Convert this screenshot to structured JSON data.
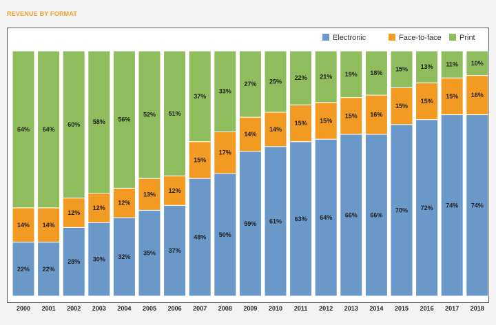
{
  "chart_data": {
    "type": "bar",
    "stacked": true,
    "title": "REVENUE BY FORMAT",
    "xlabel": "",
    "ylabel": "",
    "ylim": [
      0,
      100
    ],
    "legend_position": "top-right",
    "categories": [
      "2000",
      "2001",
      "2002",
      "2003",
      "2004",
      "2005",
      "2006",
      "2007",
      "2008",
      "2009",
      "2010",
      "2011",
      "2012",
      "2013",
      "2014",
      "2015",
      "2016",
      "2017",
      "2018"
    ],
    "series": [
      {
        "name": "Electronic",
        "color": "#6a98c9",
        "values": [
          22,
          22,
          28,
          30,
          32,
          35,
          37,
          48,
          50,
          59,
          61,
          63,
          64,
          66,
          66,
          70,
          72,
          74,
          74
        ]
      },
      {
        "name": "Face-to-face",
        "color": "#f39a22",
        "values": [
          14,
          14,
          12,
          12,
          12,
          13,
          12,
          15,
          17,
          14,
          14,
          15,
          15,
          15,
          16,
          15,
          15,
          15,
          16
        ]
      },
      {
        "name": "Print",
        "color": "#8fbd5d",
        "values": [
          64,
          64,
          60,
          58,
          56,
          52,
          51,
          37,
          33,
          27,
          25,
          22,
          21,
          19,
          18,
          15,
          13,
          11,
          10
        ]
      }
    ]
  }
}
